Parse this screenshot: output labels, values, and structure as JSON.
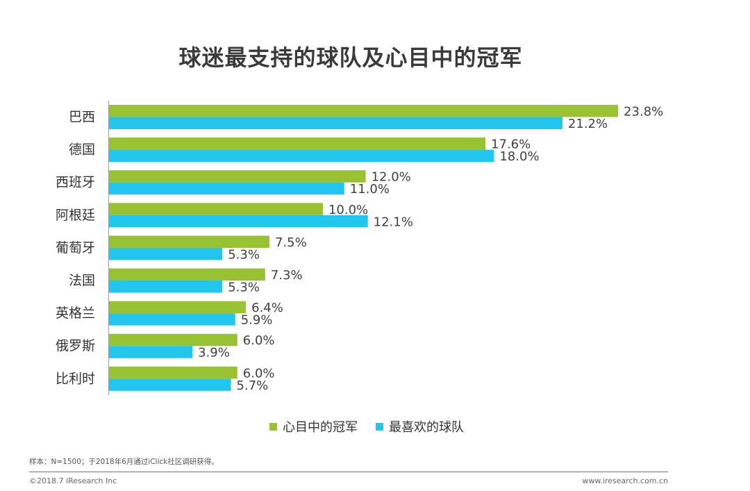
{
  "chart_data": {
    "type": "bar",
    "orientation": "horizontal",
    "title": "球迷最支持的球队及心目中的冠军",
    "categories": [
      "巴西",
      "德国",
      "西班牙",
      "阿根廷",
      "葡萄牙",
      "法国",
      "英格兰",
      "俄罗斯",
      "比利时"
    ],
    "series": [
      {
        "name": "心目中的冠军",
        "color": "#99c232",
        "values": [
          23.8,
          17.6,
          12.0,
          10.0,
          7.5,
          7.3,
          6.4,
          6.0,
          6.0
        ],
        "labels": [
          "23.8%",
          "17.6%",
          "12.0%",
          "10.0%",
          "7.5%",
          "7.3%",
          "6.4%",
          "6.0%",
          "6.0%"
        ]
      },
      {
        "name": "最喜欢的球队",
        "color": "#22c5ee",
        "values": [
          21.2,
          18.0,
          11.0,
          12.1,
          5.3,
          5.3,
          5.9,
          3.9,
          5.7
        ],
        "labels": [
          "21.2%",
          "18.0%",
          "11.0%",
          "12.1%",
          "5.3%",
          "5.3%",
          "5.9%",
          "3.9%",
          "5.7%"
        ]
      }
    ],
    "xlim": [
      0,
      24
    ],
    "xlabel": "",
    "ylabel": "",
    "legend_position": "bottom",
    "grid": false
  },
  "note": "样本：N=1500；于2018年6月通过iClick社区调研获得。",
  "footer": {
    "copyright": "©2018.7 iResearch Inc",
    "website": "www.iresearch.com.cn"
  }
}
